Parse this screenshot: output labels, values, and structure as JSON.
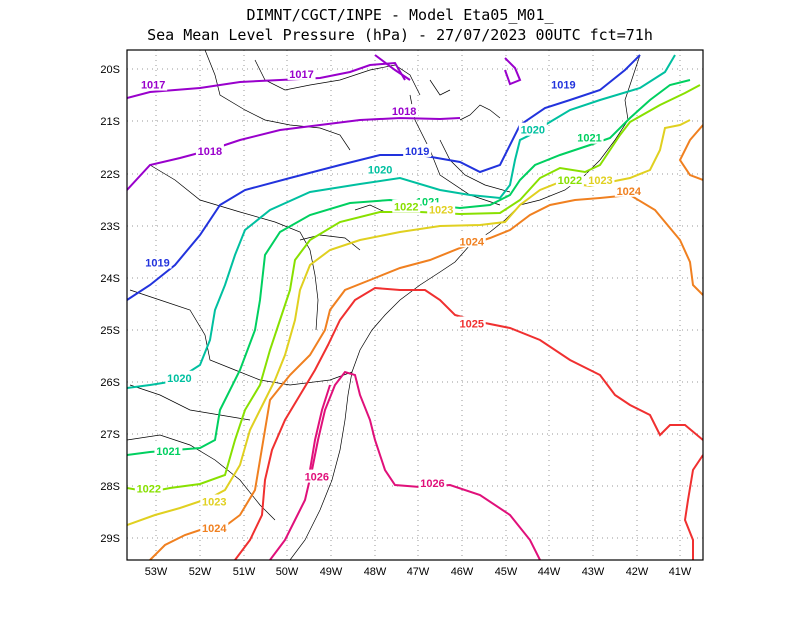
{
  "title": {
    "line1": "DIMNT/CGCT/INPE -  Model Eta05_M01_",
    "line2": "Sea Mean Level Pressure (hPa) - 27/07/2023 00UTC fct=71h"
  },
  "axes": {
    "lat_labels": [
      "20S",
      "21S",
      "22S",
      "23S",
      "24S",
      "25S",
      "26S",
      "27S",
      "28S",
      "29S"
    ],
    "lon_labels": [
      "53W",
      "52W",
      "51W",
      "50W",
      "49W",
      "48W",
      "47W",
      "46W",
      "45W",
      "44W",
      "43W",
      "42W",
      "41W"
    ]
  },
  "map": {
    "lat_range": [
      -29.4,
      -19.8
    ],
    "lon_range": [
      -53.7,
      -40.5
    ],
    "grid": "dotted"
  },
  "chart_data": {
    "type": "contour",
    "variable": "Sea Mean Level Pressure (hPa)",
    "isobars": [
      {
        "value": 1017,
        "label": "1017",
        "color": "#9900cc",
        "label_positions": [
          [
            -53.1,
            -20.45
          ],
          [
            -49.7,
            -20.25
          ]
        ]
      },
      {
        "value": 1018,
        "label": "1018",
        "color": "#9900cc",
        "label_positions": [
          [
            -51.8,
            -21.7
          ],
          [
            -47.35,
            -20.95
          ]
        ]
      },
      {
        "value": 1019,
        "label": "1019",
        "color": "#2233dd",
        "label_positions": [
          [
            -53.0,
            -23.8
          ],
          [
            -47.05,
            -21.7
          ],
          [
            -43.7,
            -20.45
          ]
        ]
      },
      {
        "value": 1020,
        "label": "1020",
        "color": "#00c0a0",
        "label_positions": [
          [
            -52.5,
            -25.97
          ],
          [
            -47.9,
            -22.05
          ],
          [
            -44.4,
            -21.3
          ]
        ]
      },
      {
        "value": 1021,
        "label": "1021",
        "color": "#00d060",
        "label_positions": [
          [
            -52.75,
            -27.35
          ],
          [
            -46.8,
            -22.65
          ],
          [
            -43.1,
            -21.45
          ]
        ]
      },
      {
        "value": 1022,
        "label": "1022",
        "color": "#88e000",
        "label_positions": [
          [
            -53.2,
            -28.05
          ],
          [
            -47.3,
            -22.75
          ],
          [
            -43.55,
            -22.25
          ]
        ]
      },
      {
        "value": 1023,
        "label": "1023",
        "color": "#e0d020",
        "label_positions": [
          [
            -51.7,
            -28.3
          ],
          [
            -46.5,
            -22.8
          ],
          [
            -42.85,
            -22.25
          ]
        ]
      },
      {
        "value": 1024,
        "label": "1024",
        "color": "#f08020",
        "label_positions": [
          [
            -51.7,
            -28.8
          ],
          [
            -45.8,
            -23.4
          ],
          [
            -42.2,
            -22.45
          ]
        ]
      },
      {
        "value": 1025,
        "label": "1025",
        "color": "#f03030",
        "label_positions": [
          [
            -45.8,
            -24.95
          ]
        ]
      },
      {
        "value": 1026,
        "label": "1026",
        "color": "#e0107a",
        "label_positions": [
          [
            -49.35,
            -27.83
          ],
          [
            -46.7,
            -27.95
          ]
        ]
      }
    ]
  }
}
